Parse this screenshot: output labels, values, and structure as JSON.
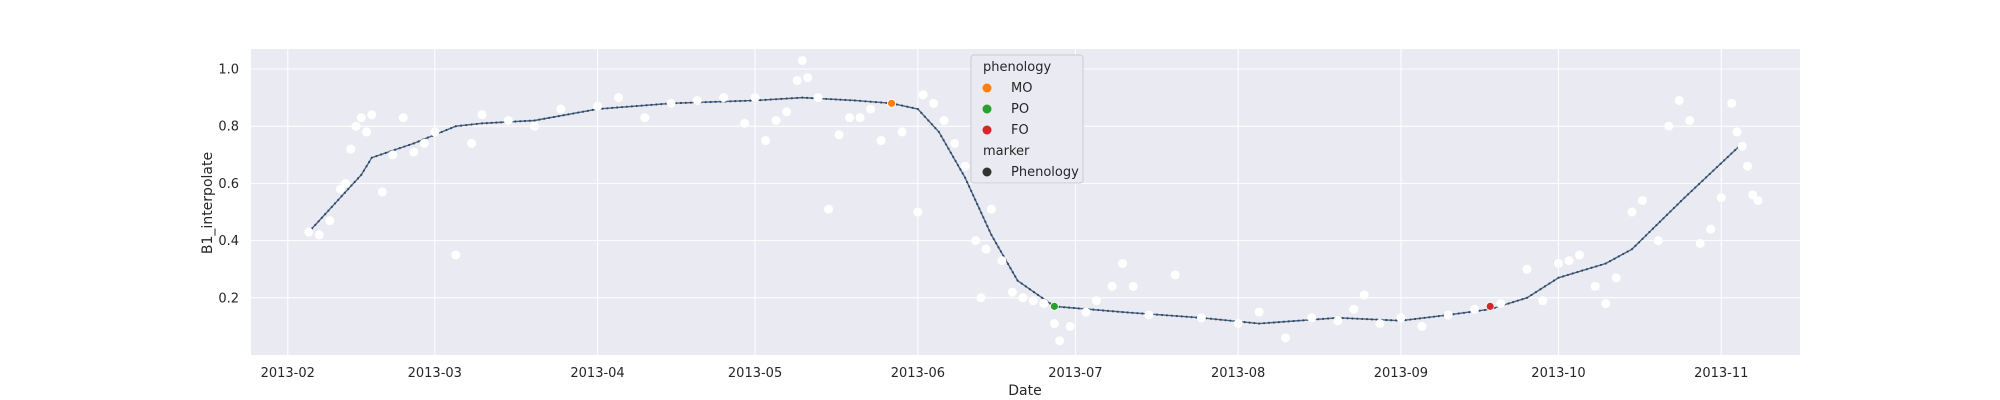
{
  "chart_data": {
    "type": "scatter",
    "title": "",
    "xlabel": "Date",
    "ylabel": "B1_interpolate",
    "x_axis": "date",
    "xlim": [
      "2013-01-25",
      "2013-11-16"
    ],
    "ylim": [
      0.0,
      1.07
    ],
    "x_ticks": [
      "2013-02",
      "2013-03",
      "2013-04",
      "2013-05",
      "2013-06",
      "2013-07",
      "2013-08",
      "2013-09",
      "2013-10",
      "2013-11"
    ],
    "y_ticks": [
      0.2,
      0.4,
      0.6,
      0.8,
      1.0
    ],
    "y_tick_labels": [
      "0.2",
      "0.4",
      "0.6",
      "0.8",
      "1.0"
    ],
    "grid": true,
    "legend_position": "top-center",
    "colors": {
      "background": "#eaeaf2",
      "grid": "#ffffff",
      "observed_points": "#ffffff",
      "curve": "#4c6584",
      "MO": "#ff7f0e",
      "PO": "#2ca02c",
      "FO": "#d62728",
      "Phenology": "#333333"
    },
    "legend": {
      "hue_title": "phenology",
      "entries": [
        {
          "label": "MO",
          "color": "#ff7f0e"
        },
        {
          "label": "PO",
          "color": "#2ca02c"
        },
        {
          "label": "FO",
          "color": "#d62728"
        }
      ],
      "style_title": "marker",
      "style_entries": [
        {
          "label": "Phenology",
          "color": "#333333"
        }
      ]
    },
    "smoothed_curve": [
      [
        "2013-02-05",
        0.43
      ],
      [
        "2013-02-10",
        0.53
      ],
      [
        "2013-02-15",
        0.63
      ],
      [
        "2013-02-17",
        0.69
      ],
      [
        "2013-02-25",
        0.74
      ],
      [
        "2013-03-05",
        0.8
      ],
      [
        "2013-03-10",
        0.81
      ],
      [
        "2013-03-20",
        0.82
      ],
      [
        "2013-04-01",
        0.86
      ],
      [
        "2013-04-15",
        0.88
      ],
      [
        "2013-05-01",
        0.89
      ],
      [
        "2013-05-10",
        0.9
      ],
      [
        "2013-05-20",
        0.89
      ],
      [
        "2013-05-27",
        0.88
      ],
      [
        "2013-06-01",
        0.86
      ],
      [
        "2013-06-05",
        0.78
      ],
      [
        "2013-06-10",
        0.62
      ],
      [
        "2013-06-15",
        0.42
      ],
      [
        "2013-06-20",
        0.26
      ],
      [
        "2013-06-27",
        0.17
      ],
      [
        "2013-07-10",
        0.15
      ],
      [
        "2013-07-25",
        0.13
      ],
      [
        "2013-08-05",
        0.11
      ],
      [
        "2013-08-20",
        0.13
      ],
      [
        "2013-09-01",
        0.12
      ],
      [
        "2013-09-10",
        0.14
      ],
      [
        "2013-09-18",
        0.16
      ],
      [
        "2013-09-25",
        0.2
      ],
      [
        "2013-10-01",
        0.27
      ],
      [
        "2013-10-10",
        0.32
      ],
      [
        "2013-10-15",
        0.37
      ],
      [
        "2013-10-25",
        0.55
      ],
      [
        "2013-11-05",
        0.74
      ]
    ],
    "observations": [
      [
        "2013-02-05",
        0.43
      ],
      [
        "2013-02-07",
        0.42
      ],
      [
        "2013-02-09",
        0.47
      ],
      [
        "2013-02-11",
        0.58
      ],
      [
        "2013-02-12",
        0.6
      ],
      [
        "2013-02-13",
        0.72
      ],
      [
        "2013-02-14",
        0.8
      ],
      [
        "2013-02-15",
        0.83
      ],
      [
        "2013-02-16",
        0.78
      ],
      [
        "2013-02-17",
        0.84
      ],
      [
        "2013-02-19",
        0.57
      ],
      [
        "2013-02-21",
        0.7
      ],
      [
        "2013-02-23",
        0.83
      ],
      [
        "2013-02-25",
        0.71
      ],
      [
        "2013-02-27",
        0.74
      ],
      [
        "2013-03-01",
        0.78
      ],
      [
        "2013-03-05",
        0.35
      ],
      [
        "2013-03-08",
        0.74
      ],
      [
        "2013-03-10",
        0.84
      ],
      [
        "2013-03-15",
        0.82
      ],
      [
        "2013-03-20",
        0.8
      ],
      [
        "2013-03-25",
        0.86
      ],
      [
        "2013-04-01",
        0.87
      ],
      [
        "2013-04-05",
        0.9
      ],
      [
        "2013-04-10",
        0.83
      ],
      [
        "2013-04-15",
        0.88
      ],
      [
        "2013-04-20",
        0.89
      ],
      [
        "2013-04-25",
        0.9
      ],
      [
        "2013-04-29",
        0.81
      ],
      [
        "2013-05-01",
        0.9
      ],
      [
        "2013-05-03",
        0.75
      ],
      [
        "2013-05-05",
        0.82
      ],
      [
        "2013-05-07",
        0.85
      ],
      [
        "2013-05-09",
        0.96
      ],
      [
        "2013-05-10",
        1.03
      ],
      [
        "2013-05-11",
        0.97
      ],
      [
        "2013-05-13",
        0.9
      ],
      [
        "2013-05-15",
        0.51
      ],
      [
        "2013-05-17",
        0.77
      ],
      [
        "2013-05-19",
        0.83
      ],
      [
        "2013-05-21",
        0.83
      ],
      [
        "2013-05-23",
        0.86
      ],
      [
        "2013-05-25",
        0.75
      ],
      [
        "2013-05-27",
        0.88
      ],
      [
        "2013-05-29",
        0.78
      ],
      [
        "2013-06-01",
        0.5
      ],
      [
        "2013-06-02",
        0.91
      ],
      [
        "2013-06-04",
        0.88
      ],
      [
        "2013-06-06",
        0.82
      ],
      [
        "2013-06-08",
        0.74
      ],
      [
        "2013-06-10",
        0.66
      ],
      [
        "2013-06-12",
        0.4
      ],
      [
        "2013-06-13",
        0.2
      ],
      [
        "2013-06-14",
        0.37
      ],
      [
        "2013-06-15",
        0.51
      ],
      [
        "2013-06-17",
        0.33
      ],
      [
        "2013-06-19",
        0.22
      ],
      [
        "2013-06-21",
        0.2
      ],
      [
        "2013-06-23",
        0.19
      ],
      [
        "2013-06-25",
        0.18
      ],
      [
        "2013-06-27",
        0.11
      ],
      [
        "2013-06-28",
        0.05
      ],
      [
        "2013-06-30",
        0.1
      ],
      [
        "2013-07-03",
        0.15
      ],
      [
        "2013-07-05",
        0.19
      ],
      [
        "2013-07-08",
        0.24
      ],
      [
        "2013-07-10",
        0.32
      ],
      [
        "2013-07-12",
        0.24
      ],
      [
        "2013-07-15",
        0.14
      ],
      [
        "2013-07-20",
        0.28
      ],
      [
        "2013-07-25",
        0.13
      ],
      [
        "2013-08-01",
        0.11
      ],
      [
        "2013-08-05",
        0.15
      ],
      [
        "2013-08-10",
        0.06
      ],
      [
        "2013-08-15",
        0.13
      ],
      [
        "2013-08-20",
        0.12
      ],
      [
        "2013-08-23",
        0.16
      ],
      [
        "2013-08-25",
        0.21
      ],
      [
        "2013-08-28",
        0.11
      ],
      [
        "2013-09-01",
        0.13
      ],
      [
        "2013-09-05",
        0.1
      ],
      [
        "2013-09-10",
        0.14
      ],
      [
        "2013-09-15",
        0.16
      ],
      [
        "2013-09-20",
        0.18
      ],
      [
        "2013-09-25",
        0.3
      ],
      [
        "2013-09-28",
        0.19
      ],
      [
        "2013-10-01",
        0.32
      ],
      [
        "2013-10-03",
        0.33
      ],
      [
        "2013-10-05",
        0.35
      ],
      [
        "2013-10-08",
        0.24
      ],
      [
        "2013-10-10",
        0.18
      ],
      [
        "2013-10-12",
        0.27
      ],
      [
        "2013-10-15",
        0.5
      ],
      [
        "2013-10-17",
        0.54
      ],
      [
        "2013-10-20",
        0.4
      ],
      [
        "2013-10-22",
        0.8
      ],
      [
        "2013-10-24",
        0.89
      ],
      [
        "2013-10-26",
        0.82
      ],
      [
        "2013-10-28",
        0.39
      ],
      [
        "2013-10-30",
        0.44
      ],
      [
        "2013-11-01",
        0.55
      ],
      [
        "2013-11-03",
        0.88
      ],
      [
        "2013-11-04",
        0.78
      ],
      [
        "2013-11-05",
        0.73
      ],
      [
        "2013-11-06",
        0.66
      ],
      [
        "2013-11-07",
        0.56
      ],
      [
        "2013-11-08",
        0.54
      ]
    ],
    "phenology_points": [
      {
        "label": "MO",
        "date": "2013-05-27",
        "value": 0.88
      },
      {
        "label": "PO",
        "date": "2013-06-27",
        "value": 0.17
      },
      {
        "label": "FO",
        "date": "2013-09-18",
        "value": 0.17
      }
    ]
  }
}
